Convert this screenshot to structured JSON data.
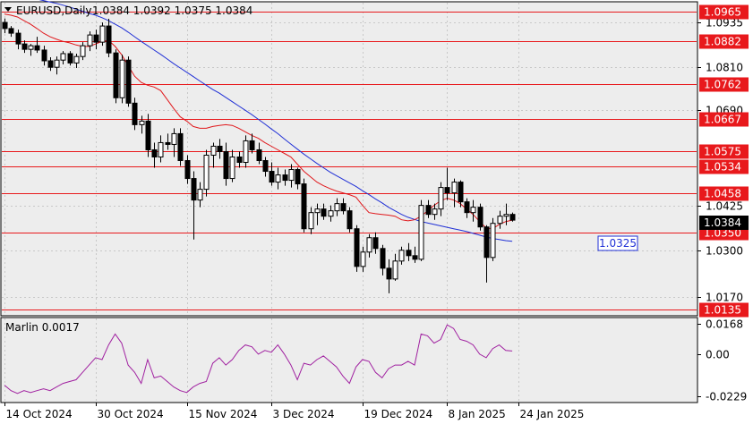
{
  "header": {
    "symbol": "EURUSD,Daily",
    "ohlc": "1.0384 1.0392 1.0375 1.0384"
  },
  "colors": {
    "background": "#FFFFFF",
    "plot_bg": "#EDEDED",
    "grid": "#C8C8C8",
    "level_line": "#E8191C",
    "level_label_bg": "#E8191C",
    "ma_fast": "#E0181C",
    "ma_slow": "#1F2FD6",
    "candle": "#000000",
    "oscillator": "#A020A0",
    "price_tag_bg": "#000000",
    "callout_border": "#1F2FD6",
    "callout_text": "#1F2FD6"
  },
  "chart_data": [
    {
      "type": "candlestick",
      "title": "EURUSD,Daily",
      "ylim": [
        1.012,
        1.099
      ],
      "x_ticks": [
        "14 Oct 2024",
        "30 Oct 2024",
        "15 Nov 2024",
        "3 Dec 2024",
        "19 Dec 2024",
        "8 Jan 2025",
        "24 Jan 2025"
      ],
      "y_ticks": [
        1.0935,
        1.081,
        1.069,
        1.0425,
        1.03,
        1.017
      ],
      "levels": [
        {
          "label": "1.0965",
          "value": 1.0965
        },
        {
          "label": "1.0882",
          "value": 1.0882
        },
        {
          "label": "1.0762",
          "value": 1.0762
        },
        {
          "label": "1.0667",
          "value": 1.0667
        },
        {
          "label": "1.0575",
          "value": 1.0575
        },
        {
          "label": "1.0534",
          "value": 1.0534
        },
        {
          "label": "1.0458",
          "value": 1.0458
        },
        {
          "label": "1.0350",
          "value": 1.035
        },
        {
          "label": "1.0135",
          "value": 1.0135
        }
      ],
      "current_price": {
        "label": "1.0384",
        "value": 1.0384
      },
      "callout": {
        "label": "1.0325",
        "value": 1.0325
      },
      "candles": [
        [
          1.0935,
          1.0946,
          1.0905,
          1.0918
        ],
        [
          1.0918,
          1.0925,
          1.0895,
          1.0905
        ],
        [
          1.0905,
          1.0915,
          1.086,
          1.0875
        ],
        [
          1.0875,
          1.0885,
          1.085,
          1.086
        ],
        [
          1.086,
          1.0875,
          1.0842,
          1.087
        ],
        [
          1.087,
          1.0895,
          1.085,
          1.0858
        ],
        [
          1.0858,
          1.087,
          1.0815,
          1.0828
        ],
        [
          1.0828,
          1.0838,
          1.08,
          1.081
        ],
        [
          1.081,
          1.084,
          1.079,
          1.083
        ],
        [
          1.083,
          1.0855,
          1.0818,
          1.0848
        ],
        [
          1.0848,
          1.0855,
          1.0815,
          1.0822
        ],
        [
          1.0822,
          1.0848,
          1.0808,
          1.084
        ],
        [
          1.084,
          1.088,
          1.083,
          1.087
        ],
        [
          1.087,
          1.091,
          1.0855,
          1.09
        ],
        [
          1.09,
          1.0915,
          1.086,
          1.088
        ],
        [
          1.088,
          1.0935,
          1.087,
          1.0925
        ],
        [
          1.0925,
          1.0945,
          1.0838,
          1.085
        ],
        [
          1.085,
          1.086,
          1.071,
          1.0725
        ],
        [
          1.0725,
          1.0845,
          1.071,
          1.083
        ],
        [
          1.083,
          1.084,
          1.07,
          1.071
        ],
        [
          1.071,
          1.0725,
          1.0635,
          1.065
        ],
        [
          1.065,
          1.0675,
          1.0625,
          1.066
        ],
        [
          1.066,
          1.068,
          1.056,
          1.058
        ],
        [
          1.058,
          1.06,
          1.053,
          1.056
        ],
        [
          1.056,
          1.062,
          1.0545,
          1.06
        ],
        [
          1.06,
          1.0625,
          1.058,
          1.0595
        ],
        [
          1.0595,
          1.064,
          1.056,
          1.0625
        ],
        [
          1.0625,
          1.064,
          1.0535,
          1.055
        ],
        [
          1.055,
          1.0565,
          1.0485,
          1.05
        ],
        [
          1.05,
          1.052,
          1.033,
          1.044
        ],
        [
          1.044,
          1.049,
          1.042,
          1.047
        ],
        [
          1.047,
          1.058,
          1.045,
          1.0565
        ],
        [
          1.0565,
          1.06,
          1.053,
          1.059
        ],
        [
          1.059,
          1.061,
          1.0555,
          1.0575
        ],
        [
          1.0575,
          1.06,
          1.048,
          1.05
        ],
        [
          1.05,
          1.058,
          1.049,
          1.056
        ],
        [
          1.056,
          1.0575,
          1.053,
          1.0545
        ],
        [
          1.0545,
          1.062,
          1.053,
          1.0605
        ],
        [
          1.0605,
          1.0625,
          1.057,
          1.058
        ],
        [
          1.058,
          1.06,
          1.054,
          1.055
        ],
        [
          1.055,
          1.056,
          1.0505,
          1.052
        ],
        [
          1.052,
          1.0545,
          1.048,
          1.049
        ],
        [
          1.049,
          1.053,
          1.047,
          1.051
        ],
        [
          1.051,
          1.0525,
          1.048,
          1.0495
        ],
        [
          1.0495,
          1.054,
          1.0475,
          1.0525
        ],
        [
          1.0525,
          1.053,
          1.047,
          1.0485
        ],
        [
          1.0485,
          1.05,
          1.035,
          1.036
        ],
        [
          1.036,
          1.042,
          1.0345,
          1.0405
        ],
        [
          1.0405,
          1.043,
          1.037,
          1.0415
        ],
        [
          1.0415,
          1.043,
          1.0385,
          1.0395
        ],
        [
          1.0395,
          1.0425,
          1.038,
          1.041
        ],
        [
          1.041,
          1.0445,
          1.0395,
          1.043
        ],
        [
          1.043,
          1.0445,
          1.04,
          1.041
        ],
        [
          1.041,
          1.042,
          1.035,
          1.036
        ],
        [
          1.036,
          1.037,
          1.024,
          1.0255
        ],
        [
          1.0255,
          1.031,
          1.024,
          1.0295
        ],
        [
          1.0295,
          1.0345,
          1.028,
          1.0335
        ],
        [
          1.0335,
          1.035,
          1.029,
          1.0305
        ],
        [
          1.0305,
          1.0315,
          1.023,
          1.025
        ],
        [
          1.025,
          1.0275,
          1.018,
          1.022
        ],
        [
          1.022,
          1.029,
          1.0215,
          1.027
        ],
        [
          1.027,
          1.031,
          1.026,
          1.03
        ],
        [
          1.03,
          1.032,
          1.027,
          1.0285
        ],
        [
          1.0285,
          1.031,
          1.0265,
          1.0275
        ],
        [
          1.0275,
          1.044,
          1.027,
          1.0425
        ],
        [
          1.0425,
          1.044,
          1.039,
          1.04
        ],
        [
          1.04,
          1.043,
          1.0385,
          1.0415
        ],
        [
          1.0415,
          1.049,
          1.0395,
          1.0475
        ],
        [
          1.0475,
          1.053,
          1.044,
          1.046
        ],
        [
          1.046,
          1.05,
          1.042,
          1.049
        ],
        [
          1.049,
          1.0495,
          1.042,
          1.0435
        ],
        [
          1.0435,
          1.0445,
          1.039,
          1.0405
        ],
        [
          1.0405,
          1.044,
          1.038,
          1.042
        ],
        [
          1.042,
          1.043,
          1.0355,
          1.0365
        ],
        [
          1.0365,
          1.037,
          1.021,
          1.028
        ],
        [
          1.028,
          1.039,
          1.027,
          1.0375
        ],
        [
          1.0375,
          1.041,
          1.036,
          1.0395
        ],
        [
          1.0395,
          1.043,
          1.037,
          1.04
        ],
        [
          1.04,
          1.0405,
          1.038,
          1.0384
        ]
      ],
      "ma_fast": [
        1.0958,
        1.0955,
        1.095,
        1.094,
        1.093,
        1.0918,
        1.0905,
        1.0895,
        1.0888,
        1.0882,
        1.0878,
        1.0872,
        1.0868,
        1.0868,
        1.0875,
        1.0882,
        1.0885,
        1.0868,
        1.0845,
        1.0815,
        1.0785,
        1.0768,
        1.076,
        1.0755,
        1.0745,
        1.072,
        1.0695,
        1.0672,
        1.066,
        1.0645,
        1.064,
        1.064,
        1.0645,
        1.0648,
        1.065,
        1.0648,
        1.064,
        1.063,
        1.062,
        1.0612,
        1.06,
        1.059,
        1.058,
        1.057,
        1.056,
        1.054,
        1.052,
        1.0505,
        1.049,
        1.048,
        1.0472,
        1.0465,
        1.046,
        1.0455,
        1.0448,
        1.0425,
        1.0405,
        1.0402,
        1.04,
        1.0398,
        1.0395,
        1.0385,
        1.0382,
        1.0385,
        1.0395,
        1.041,
        1.0425,
        1.0438,
        1.0445,
        1.044,
        1.043,
        1.0415,
        1.04,
        1.038,
        1.0362,
        1.036,
        1.0372,
        1.038,
        1.0384
      ],
      "ma_slow": [
        1.1015,
        1.1012,
        1.101,
        1.1008,
        1.1005,
        1.1,
        1.0996,
        1.0992,
        1.0988,
        1.0983,
        1.0978,
        1.0972,
        1.0966,
        1.096,
        1.0955,
        1.0948,
        1.094,
        1.093,
        1.092,
        1.0908,
        1.0895,
        1.0882,
        1.087,
        1.0858,
        1.0846,
        1.0833,
        1.082,
        1.0808,
        1.0796,
        1.0784,
        1.0772,
        1.076,
        1.0748,
        1.0738,
        1.0726,
        1.0714,
        1.0702,
        1.069,
        1.0678,
        1.0665,
        1.0652,
        1.0638,
        1.0625,
        1.061,
        1.0596,
        1.0582,
        1.0568,
        1.0555,
        1.0542,
        1.053,
        1.0518,
        1.0508,
        1.0498,
        1.0488,
        1.0478,
        1.0466,
        1.0455,
        1.0443,
        1.0432,
        1.042,
        1.041,
        1.04,
        1.0392,
        1.0386,
        1.038,
        1.0376,
        1.0372,
        1.0368,
        1.0364,
        1.036,
        1.0356,
        1.0352,
        1.0347,
        1.0342,
        1.0337,
        1.0333,
        1.033,
        1.0327,
        1.0325
      ]
    },
    {
      "type": "line",
      "title": "Marlin 0.0017",
      "ylim": [
        -0.026,
        0.0195
      ],
      "y_ticks": [
        {
          "label": "0.0168",
          "value": 0.0168
        },
        {
          "label": "0.00",
          "value": 0.0
        },
        {
          "label": "-0.0229",
          "value": -0.0229
        }
      ],
      "series": [
        {
          "values": [
            -0.017,
            -0.02,
            -0.0215,
            -0.02,
            -0.021,
            -0.02,
            -0.019,
            -0.02,
            -0.018,
            -0.016,
            -0.015,
            -0.014,
            -0.01,
            -0.006,
            -0.002,
            -0.003,
            0.005,
            0.011,
            0.006,
            -0.006,
            -0.01,
            -0.016,
            -0.003,
            -0.013,
            -0.012,
            -0.015,
            -0.018,
            -0.02,
            -0.021,
            -0.018,
            -0.016,
            -0.015,
            -0.005,
            -0.002,
            -0.006,
            -0.003,
            0.002,
            0.005,
            0.004,
            0.0,
            0.002,
            0.001,
            0.005,
            0.0,
            -0.006,
            -0.014,
            -0.005,
            -0.006,
            -0.003,
            -0.001,
            -0.004,
            -0.007,
            -0.012,
            -0.016,
            -0.007,
            -0.003,
            -0.004,
            -0.01,
            -0.013,
            -0.008,
            -0.006,
            -0.006,
            -0.004,
            -0.006,
            0.011,
            0.01,
            0.006,
            0.008,
            0.016,
            0.014,
            0.008,
            0.007,
            0.005,
            0.0,
            -0.002,
            0.003,
            0.005,
            0.002,
            0.0017
          ]
        }
      ]
    }
  ]
}
